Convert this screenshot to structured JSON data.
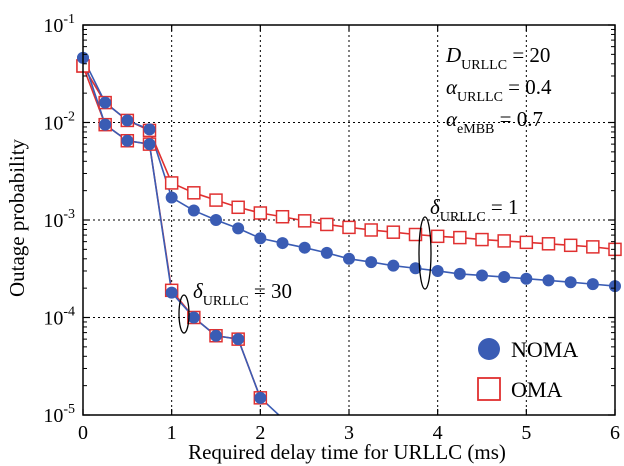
{
  "chart_data": {
    "type": "line",
    "xlabel": "Required delay time for URLLC (ms)",
    "ylabel": "Outage probability",
    "xlim": [
      0,
      6
    ],
    "ylim": [
      1e-05,
      0.1
    ],
    "yscale": "log",
    "grid": true,
    "xticks": [
      "0",
      "1",
      "2",
      "3",
      "4",
      "5",
      "6"
    ],
    "yticks": [
      {
        "base": "10",
        "exp": "-1",
        "value": 0.1
      },
      {
        "base": "10",
        "exp": "-2",
        "value": 0.01
      },
      {
        "base": "10",
        "exp": "-3",
        "value": 0.001
      },
      {
        "base": "10",
        "exp": "-4",
        "value": 0.0001
      },
      {
        "base": "10",
        "exp": "-5",
        "value": 1e-05
      }
    ],
    "legend": {
      "placement": "bottom-right",
      "entries": [
        {
          "label": "NOMA",
          "marker": "filled-circle",
          "color": "#3a5cb4"
        },
        {
          "label": "OMA",
          "marker": "open-square",
          "color": "#e03030"
        }
      ]
    },
    "parameters": [
      {
        "symbol": "D",
        "sub": "URLLC",
        "value": "= 20"
      },
      {
        "symbol": "α",
        "sub": "URLLC",
        "value": "= 0.4"
      },
      {
        "symbol": "α",
        "sub": "eMBB",
        "value": "= 0.7"
      }
    ],
    "annotations": [
      {
        "symbol": "δ",
        "sub": "URLLC",
        "value": "= 1"
      },
      {
        "symbol": "δ",
        "sub": "URLLC",
        "value": "= 30"
      }
    ],
    "series": [
      {
        "group": "δURLLC = 1",
        "scheme": "OMA",
        "marker": "open-square",
        "color": "#e03030",
        "x": [
          0,
          0.25,
          0.5,
          0.75,
          1,
          1.25,
          1.5,
          1.75,
          2,
          2.25,
          2.5,
          2.75,
          3,
          3.25,
          3.5,
          3.75,
          4,
          4.25,
          4.5,
          4.75,
          5,
          5.25,
          5.5,
          5.75,
          6
        ],
        "y": [
          0.038,
          0.016,
          0.0105,
          0.0083,
          0.0024,
          0.0019,
          0.0016,
          0.00135,
          0.00118,
          0.00108,
          0.00098,
          0.0009,
          0.00084,
          0.00079,
          0.00075,
          0.00071,
          0.00068,
          0.00066,
          0.00063,
          0.00061,
          0.00059,
          0.00057,
          0.00055,
          0.00053,
          0.0005
        ]
      },
      {
        "group": "δURLLC = 1",
        "scheme": "NOMA",
        "marker": "filled-circle",
        "color": "#3a5cb4",
        "x": [
          0,
          0.25,
          0.5,
          0.75,
          1,
          1.25,
          1.5,
          1.75,
          2,
          2.25,
          2.5,
          2.75,
          3,
          3.25,
          3.5,
          3.75,
          4,
          4.25,
          4.5,
          4.75,
          5,
          5.25,
          5.5,
          5.75,
          6
        ],
        "y": [
          0.046,
          0.016,
          0.0105,
          0.0085,
          0.0017,
          0.00125,
          0.001,
          0.00082,
          0.00065,
          0.00058,
          0.00052,
          0.00046,
          0.0004,
          0.00037,
          0.00034,
          0.00032,
          0.0003,
          0.00028,
          0.00027,
          0.00026,
          0.00025,
          0.00024,
          0.00023,
          0.00022,
          0.00021
        ]
      },
      {
        "group": "δURLLC = 30",
        "scheme": "OMA",
        "marker": "open-square",
        "color": "#e03030",
        "x": [
          0,
          0.25,
          0.5,
          0.75,
          1,
          1.25,
          1.5,
          1.75,
          2
        ],
        "y": [
          0.038,
          0.0095,
          0.0065,
          0.006,
          0.00019,
          0.0001,
          6.5e-05,
          6e-05,
          1.5e-05
        ]
      },
      {
        "group": "δURLLC = 30",
        "scheme": "NOMA",
        "marker": "filled-circle",
        "color": "#3a5cb4",
        "x": [
          0,
          0.25,
          0.5,
          0.75,
          1,
          1.25,
          1.5,
          1.75,
          2
        ],
        "y": [
          0.046,
          0.0095,
          0.0065,
          0.006,
          0.00018,
          0.0001,
          6.5e-05,
          6e-05,
          1.5e-05
        ]
      }
    ]
  }
}
